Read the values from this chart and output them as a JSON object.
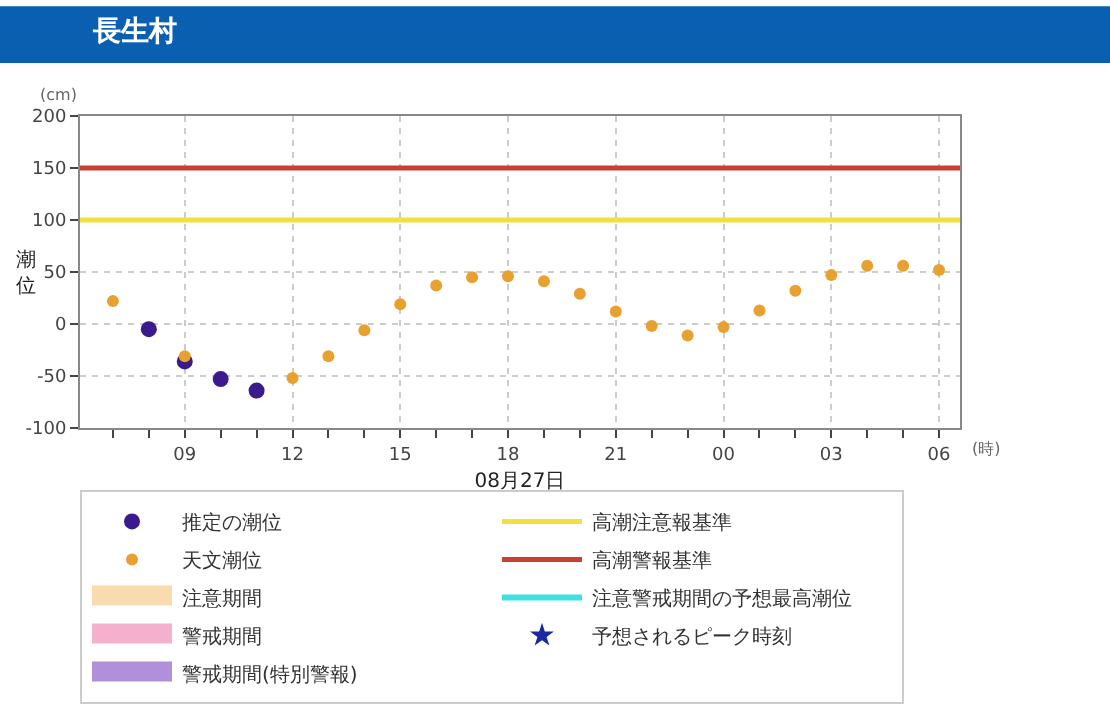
{
  "chart_data": {
    "type": "scatter",
    "title": "長生村",
    "xlabel": "08月27日",
    "ylabel": "潮位",
    "annotations": [
      "(cm)",
      "(時)"
    ],
    "x": [
      "--08-27T07:00",
      "--08-27T08:00",
      "--08-27T09:00",
      "--08-27T10:00",
      "--08-27T11:00",
      "--08-27T12:00",
      "--08-27T13:00",
      "--08-27T14:00",
      "--08-27T15:00",
      "--08-27T16:00",
      "--08-27T17:00",
      "--08-27T18:00",
      "--08-27T19:00",
      "--08-27T20:00",
      "--08-27T21:00",
      "--08-27T22:00",
      "--08-27T23:00",
      "--08-28T00:00",
      "--08-28T01:00",
      "--08-28T02:00",
      "--08-28T03:00",
      "--08-28T04:00",
      "--08-28T05:00",
      "--08-28T06:00"
    ],
    "series": [
      {
        "name": "推定の潮位",
        "color": "#3a1a8c",
        "values": [
          null,
          -5,
          -36,
          -53,
          -64,
          null,
          null,
          null,
          null,
          null,
          null,
          null,
          null,
          null,
          null,
          null,
          null,
          null,
          null,
          null,
          null,
          null,
          null,
          null
        ]
      },
      {
        "name": "天文潮位",
        "color": "#e8a030",
        "values": [
          22,
          null,
          -31,
          null,
          null,
          -52,
          -31,
          -6,
          19,
          37,
          45,
          46,
          41,
          29,
          12,
          -2,
          -11,
          -3,
          13,
          32,
          47,
          56,
          56,
          52
        ]
      },
      {
        "name": "注意期間",
        "type": "area",
        "color": "#f8dcb0",
        "values": [
          null,
          null,
          null,
          null,
          null,
          null,
          null,
          null,
          null,
          null,
          null,
          null,
          null,
          null,
          null,
          null,
          null,
          null,
          null,
          null,
          null,
          null,
          null,
          null
        ]
      },
      {
        "name": "警戒期間",
        "type": "area",
        "color": "#f4b0cc",
        "values": [
          null,
          null,
          null,
          null,
          null,
          null,
          null,
          null,
          null,
          null,
          null,
          null,
          null,
          null,
          null,
          null,
          null,
          null,
          null,
          null,
          null,
          null,
          null,
          null
        ]
      },
      {
        "name": "警戒期間(特別警報)",
        "type": "area",
        "color": "#b090d8",
        "values": [
          null,
          null,
          null,
          null,
          null,
          null,
          null,
          null,
          null,
          null,
          null,
          null,
          null,
          null,
          null,
          null,
          null,
          null,
          null,
          null,
          null,
          null,
          null,
          null
        ]
      },
      {
        "name": "注意警戒期間の予想最高潮位",
        "type": "line",
        "color": "#40e0e0",
        "values": [
          null,
          null,
          null,
          null,
          null,
          null,
          null,
          null,
          null,
          null,
          null,
          null,
          null,
          null,
          null,
          null,
          null,
          null,
          null,
          null,
          null,
          null,
          null,
          null
        ]
      },
      {
        "name": "予想されるピーク時刻",
        "marker": "star",
        "color": "#1a2aa0",
        "values": [
          null,
          null,
          null,
          null,
          null,
          null,
          null,
          null,
          null,
          null,
          null,
          null,
          null,
          null,
          null,
          null,
          null,
          null,
          null,
          null,
          null,
          null,
          null,
          null
        ]
      }
    ],
    "ref_lines": [
      {
        "axis": "y",
        "value": 100,
        "label": "高潮注意報基準",
        "color": "#f0e040"
      },
      {
        "axis": "y",
        "value": 150,
        "label": "高潮警報基準",
        "color": "#c84030"
      }
    ],
    "xlim": [
      "--08-27T06:05",
      "--08-28T06:35"
    ],
    "xticks": [
      {
        "value": "--08-27T07:00",
        "label": null
      },
      {
        "value": "--08-27T08:00",
        "label": null
      },
      {
        "value": "--08-27T09:00",
        "label": "09"
      },
      {
        "value": "--08-27T10:00",
        "label": null
      },
      {
        "value": "--08-27T11:00",
        "label": null
      },
      {
        "value": "--08-27T12:00",
        "label": "12"
      },
      {
        "value": "--08-27T13:00",
        "label": null
      },
      {
        "value": "--08-27T14:00",
        "label": null
      },
      {
        "value": "--08-27T15:00",
        "label": "15"
      },
      {
        "value": "--08-27T16:00",
        "label": null
      },
      {
        "value": "--08-27T17:00",
        "label": null
      },
      {
        "value": "--08-27T18:00",
        "label": "18"
      },
      {
        "value": "--08-27T19:00",
        "label": null
      },
      {
        "value": "--08-27T20:00",
        "label": null
      },
      {
        "value": "--08-27T21:00",
        "label": "21"
      },
      {
        "value": "--08-27T22:00",
        "label": null
      },
      {
        "value": "--08-27T23:00",
        "label": null
      },
      {
        "value": "--08-28T00:00",
        "label": "00"
      },
      {
        "value": "--08-28T01:00",
        "label": null
      },
      {
        "value": "--08-28T02:00",
        "label": null
      },
      {
        "value": "--08-28T03:00",
        "label": "03"
      },
      {
        "value": "--08-28T04:00",
        "label": null
      },
      {
        "value": "--08-28T05:00",
        "label": null
      },
      {
        "value": "--08-28T06:00",
        "label": "06"
      }
    ],
    "ylim": [
      -100,
      200
    ],
    "yticks": [
      -100,
      -50,
      0,
      50,
      100,
      150,
      200
    ],
    "grid": true,
    "legend": "bottom",
    "marker": "circle"
  }
}
